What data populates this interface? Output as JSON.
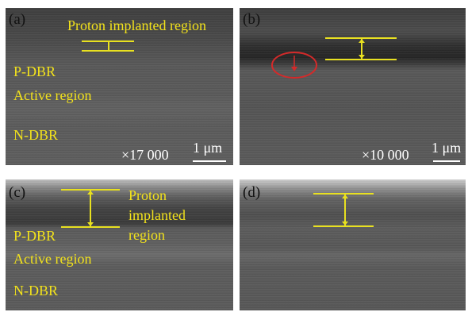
{
  "panels": {
    "a": {
      "label": "(a)",
      "proton_label": "Proton implanted region",
      "pdbr_label": "P-DBR",
      "active_label": "Active region",
      "ndbr_label": "N-DBR",
      "magnification": "×17 000",
      "scale_label": "1 μm"
    },
    "b": {
      "label": "(b)",
      "magnification": "×10 000",
      "scale_label": "1 μm"
    },
    "c": {
      "label": "(c)",
      "proton_label_line1": "Proton",
      "proton_label_line2": "implanted",
      "proton_label_line3": "region",
      "pdbr_label": "P-DBR",
      "active_label": "Active region",
      "ndbr_label": "N-DBR"
    },
    "d": {
      "label": "(d)"
    }
  },
  "colors": {
    "annotation": "#e8e020",
    "marker": "#d42a2a"
  },
  "icons": {
    "defect_marker": "red-circle-arrow-icon"
  }
}
